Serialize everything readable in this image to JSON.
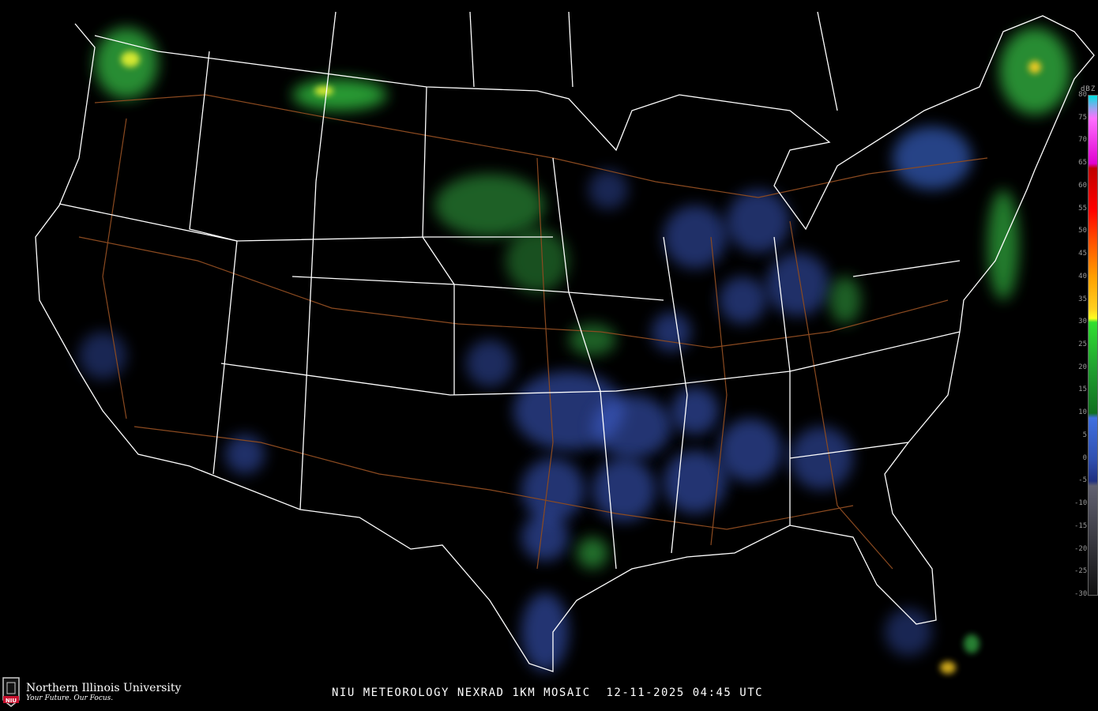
{
  "title": "NIU METEOROLOGY NEXRAD 1KM MOSAIC  12-11-2025 04:45 UTC",
  "legend": {
    "unit": "dBZ",
    "ticks": [
      80,
      75,
      70,
      65,
      60,
      55,
      50,
      45,
      40,
      35,
      30,
      25,
      20,
      15,
      10,
      5,
      0,
      -5,
      -10,
      -15,
      -20,
      -25,
      -30
    ],
    "color_stops": [
      {
        "dbz": 80,
        "color": "#00e0e0"
      },
      {
        "dbz": 77,
        "color": "#a0a0f0"
      },
      {
        "dbz": 75,
        "color": "#ff70ff"
      },
      {
        "dbz": 65,
        "color": "#e000d0"
      },
      {
        "dbz": 64,
        "color": "#c00000"
      },
      {
        "dbz": 55,
        "color": "#ff0000"
      },
      {
        "dbz": 48,
        "color": "#ff5000"
      },
      {
        "dbz": 40,
        "color": "#ffa000"
      },
      {
        "dbz": 33,
        "color": "#ffd020"
      },
      {
        "dbz": 31,
        "color": "#ffff20"
      },
      {
        "dbz": 30,
        "color": "#30e030"
      },
      {
        "dbz": 20,
        "color": "#20a030"
      },
      {
        "dbz": 10,
        "color": "#107020"
      },
      {
        "dbz": 9,
        "color": "#4070e0"
      },
      {
        "dbz": 0,
        "color": "#3050b0"
      },
      {
        "dbz": -5,
        "color": "#203080"
      },
      {
        "dbz": -6,
        "color": "#606070"
      },
      {
        "dbz": -30,
        "color": "#101010"
      }
    ]
  },
  "logo": {
    "name": "Northern Illinois University",
    "tagline": "Your Future. Our Focus.",
    "badge": "NIU"
  },
  "colors": {
    "background": "#000000",
    "borders": "#ffffff",
    "highways": "#8b4a20",
    "accent": "#c8102e"
  }
}
